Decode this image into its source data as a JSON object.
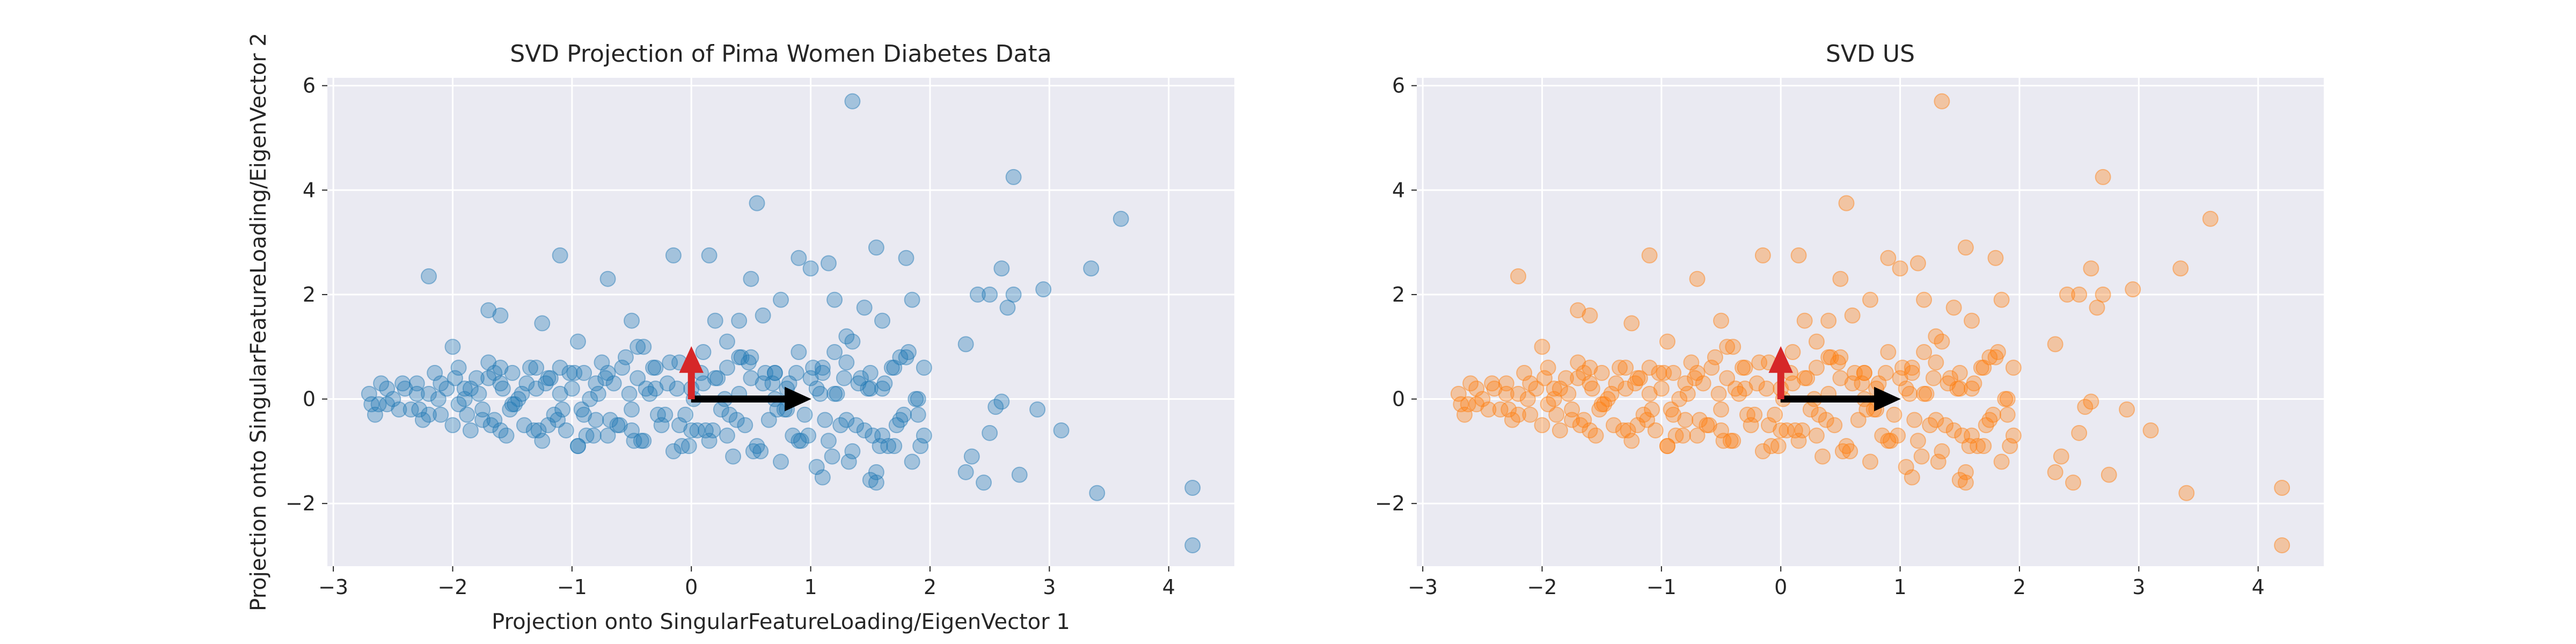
{
  "chart_data": [
    {
      "type": "scatter",
      "title": "SVD Projection of Pima Women Diabetes Data",
      "xlabel": "Projection onto SingularFeatureLoading/EigenVector 1",
      "ylabel": "Projection onto SingularFeatureLoading/EigenVector 2",
      "xlim": [
        -3.05,
        4.55
      ],
      "ylim": [
        -3.2,
        6.15
      ],
      "xticks": [
        -3,
        -2,
        -1,
        0,
        1,
        2,
        3,
        4
      ],
      "yticks": [
        -2,
        0,
        2,
        4,
        6
      ],
      "grid": true,
      "background": "#eaeaf2",
      "point_color": "#1f77b4",
      "point_alpha": 0.35,
      "arrows": [
        {
          "name": "",
          "x": 0,
          "y": 0,
          "dx": 1.0,
          "dy": 0,
          "color": "#000000"
        },
        {
          "name": "",
          "x": 0,
          "y": 0,
          "dx": 0,
          "dy": 1.0,
          "color": "#d62728"
        }
      ]
    },
    {
      "type": "scatter",
      "title": "SVD US",
      "xlabel": "",
      "ylabel": "",
      "xlim": [
        -3.05,
        4.55
      ],
      "ylim": [
        -3.2,
        6.15
      ],
      "xticks": [
        -3,
        -2,
        -1,
        0,
        1,
        2,
        3,
        4
      ],
      "yticks": [
        -2,
        0,
        2,
        4,
        6
      ],
      "grid": true,
      "background": "#eaeaf2",
      "point_color": "#ff7f0e",
      "point_alpha": 0.35,
      "arrows": [
        {
          "name": "",
          "x": 0,
          "y": 0,
          "dx": 1.0,
          "dy": 0,
          "color": "#000000"
        },
        {
          "name": "",
          "x": 0,
          "y": 0,
          "dx": 0,
          "dy": 1.0,
          "color": "#d62728"
        }
      ]
    }
  ],
  "shared_points": {
    "x": [
      -2.7,
      -2.65,
      -2.6,
      -2.55,
      -2.5,
      -2.4,
      -2.35,
      -2.3,
      -2.25,
      -2.2,
      -2.15,
      -2.1,
      -2.05,
      -2.0,
      -1.95,
      -1.9,
      -1.85,
      -1.8,
      -1.75,
      -1.7,
      -1.65,
      -1.6,
      -1.55,
      -1.5,
      -1.45,
      -1.4,
      -1.35,
      -1.3,
      -1.25,
      -1.2,
      -1.15,
      -1.1,
      -1.05,
      -1.0,
      -0.95,
      -0.9,
      -0.85,
      -0.8,
      -0.75,
      -0.7,
      -0.65,
      -0.6,
      -0.55,
      -0.5,
      -0.45,
      -0.4,
      -0.35,
      -0.3,
      -0.25,
      -0.2,
      -0.15,
      -0.1,
      -0.05,
      0.0,
      0.05,
      0.1,
      0.15,
      0.2,
      0.25,
      0.3,
      0.35,
      0.4,
      0.45,
      0.5,
      0.55,
      0.6,
      0.65,
      0.7,
      0.75,
      0.8,
      0.85,
      0.9,
      0.95,
      1.0,
      1.05,
      1.1,
      1.15,
      1.2,
      1.25,
      1.3,
      1.35,
      1.4,
      1.45,
      1.5,
      1.55,
      1.6,
      1.65,
      1.7,
      1.75,
      1.8,
      1.85,
      1.9,
      1.95,
      -2.68,
      -2.55,
      -2.45,
      -2.3,
      -2.2,
      -2.1,
      -1.95,
      -1.85,
      -1.75,
      -1.65,
      -1.52,
      -1.42,
      -1.32,
      -1.22,
      -1.12,
      -1.02,
      -0.92,
      -0.82,
      -0.72,
      -0.62,
      -0.52,
      -0.42,
      -0.32,
      -0.22,
      -0.12,
      -0.02,
      0.08,
      0.18,
      0.28,
      0.38,
      0.48,
      0.58,
      0.68,
      0.78,
      0.88,
      0.98,
      1.08,
      1.18,
      1.28,
      1.38,
      1.48,
      1.58,
      1.68,
      1.78,
      1.88,
      -2.62,
      -2.42,
      -2.28,
      -2.12,
      -1.98,
      -1.88,
      -1.78,
      -1.68,
      -1.58,
      -1.48,
      -1.38,
      -1.28,
      -1.18,
      -1.08,
      -0.98,
      -0.88,
      -0.78,
      -0.68,
      -0.58,
      -0.48,
      -0.38,
      -0.28,
      -0.18,
      -0.08,
      0.02,
      0.12,
      0.22,
      0.32,
      0.42,
      0.52,
      0.62,
      0.72,
      0.82,
      0.92,
      1.02,
      1.12,
      1.22,
      1.32,
      1.42,
      1.52,
      1.62,
      1.72,
      1.82,
      1.92,
      -1.9,
      -1.7,
      -1.5,
      -1.3,
      -1.1,
      -0.9,
      -0.7,
      -0.5,
      -0.3,
      -0.1,
      0.1,
      0.3,
      0.5,
      0.7,
      0.9,
      1.1,
      1.3,
      1.5,
      1.7,
      1.9,
      -1.6,
      -1.2,
      -0.8,
      -0.4,
      0.0,
      0.4,
      0.8,
      1.2,
      1.6,
      -2.2,
      -2.0,
      -1.7,
      -1.6,
      -1.25,
      -1.1,
      -0.95,
      -0.7,
      -0.5,
      -0.45,
      -0.15,
      0.15,
      0.3,
      0.4,
      0.5,
      0.6,
      0.75,
      0.9,
      1.0,
      1.05,
      1.15,
      1.2,
      1.35,
      1.45,
      1.55,
      1.6,
      1.8,
      1.85,
      2.3,
      2.4,
      2.5,
      2.6,
      2.65,
      2.7,
      2.95,
      3.1,
      3.35,
      3.6,
      1.35,
      2.7,
      0.55,
      0.2,
      2.55,
      2.6,
      2.9,
      3.4,
      4.2,
      4.2,
      1.55,
      1.1,
      -1.6,
      -0.95,
      2.3,
      1.5,
      2.5,
      2.45,
      2.75,
      2.35,
      0.7,
      1.3,
      1.75,
      1.95
    ],
    "y": [
      0.1,
      -0.3,
      0.3,
      -0.1,
      0.0,
      0.2,
      -0.2,
      0.3,
      -0.4,
      0.1,
      0.5,
      -0.3,
      0.2,
      -0.5,
      0.6,
      0.0,
      -0.6,
      0.4,
      -0.2,
      0.7,
      -0.4,
      0.3,
      -0.7,
      0.5,
      0.0,
      -0.5,
      0.6,
      0.2,
      -0.8,
      0.4,
      -0.3,
      0.6,
      -0.6,
      0.2,
      -0.9,
      0.5,
      0.0,
      -0.4,
      0.7,
      -0.7,
      0.3,
      -0.5,
      0.8,
      -0.2,
      0.4,
      -0.8,
      0.1,
      0.6,
      -0.5,
      0.3,
      -1.0,
      0.7,
      -0.3,
      0.2,
      -0.6,
      0.9,
      -0.8,
      0.4,
      -0.2,
      0.6,
      -1.1,
      0.1,
      -0.5,
      0.8,
      -0.9,
      0.3,
      -0.4,
      0.5,
      -1.2,
      0.2,
      -0.7,
      0.9,
      -0.3,
      0.4,
      -1.3,
      0.6,
      -0.8,
      0.1,
      -0.5,
      0.7,
      -1.0,
      0.3,
      -0.6,
      0.5,
      -1.4,
      0.2,
      -0.9,
      0.6,
      -0.4,
      0.8,
      -1.2,
      0.0,
      -0.7,
      -0.1,
      0.2,
      -0.2,
      0.1,
      -0.3,
      0.3,
      -0.1,
      0.2,
      -0.4,
      0.5,
      -0.2,
      0.1,
      -0.6,
      0.3,
      -0.4,
      0.5,
      -0.2,
      -0.7,
      0.4,
      -0.5,
      0.1,
      -0.8,
      0.6,
      -0.3,
      0.2,
      -0.9,
      0.5,
      -0.6,
      0.0,
      -0.4,
      0.7,
      -1.0,
      0.3,
      -0.2,
      0.5,
      -0.7,
      0.1,
      -1.1,
      0.4,
      -0.5,
      0.2,
      -0.9,
      0.6,
      -0.3,
      0.0,
      -0.1,
      0.3,
      -0.2,
      0.0,
      0.4,
      -0.3,
      0.1,
      -0.5,
      0.2,
      -0.1,
      0.3,
      -0.6,
      0.4,
      -0.2,
      0.5,
      -0.7,
      0.1,
      -0.4,
      0.6,
      -0.8,
      0.2,
      -0.3,
      0.7,
      -0.9,
      0.0,
      -0.6,
      0.4,
      -0.3,
      0.8,
      -1.0,
      0.5,
      -0.2,
      0.3,
      -0.8,
      0.6,
      -0.4,
      0.1,
      -1.2,
      0.4,
      -0.7,
      0.3,
      -0.5,
      0.9,
      -0.9,
      0.2,
      0.4,
      -0.1,
      0.6,
      0.1,
      -0.3,
      0.5,
      -0.6,
      0.2,
      -0.5,
      0.3,
      -0.7,
      0.4,
      0.0,
      -0.8,
      0.5,
      -0.4,
      0.2,
      -0.9,
      -0.3,
      0.6,
      -0.5,
      0.3,
      1.0,
      -0.6,
      0.8,
      -0.2,
      0.9,
      -0.7,
      2.35,
      1.0,
      1.7,
      1.6,
      1.45,
      2.75,
      1.1,
      2.3,
      1.5,
      1.0,
      2.75,
      2.75,
      1.1,
      1.5,
      2.3,
      1.6,
      1.9,
      2.7,
      2.5,
      0.2,
      2.6,
      1.9,
      1.1,
      1.75,
      2.9,
      1.5,
      2.7,
      1.9,
      1.05,
      2.0,
      2.0,
      2.5,
      1.75,
      2.0,
      2.1,
      -0.6,
      2.5,
      3.45,
      5.7,
      4.25,
      3.75,
      1.5,
      -0.15,
      -0.05,
      -0.2,
      -1.8,
      -1.7,
      -2.8,
      -1.6,
      -1.5,
      -0.6,
      -0.9,
      -1.4,
      -1.55,
      -0.65,
      -1.6,
      -1.45,
      -1.1,
      0.5,
      1.2,
      0.8,
      0.6
    ]
  }
}
